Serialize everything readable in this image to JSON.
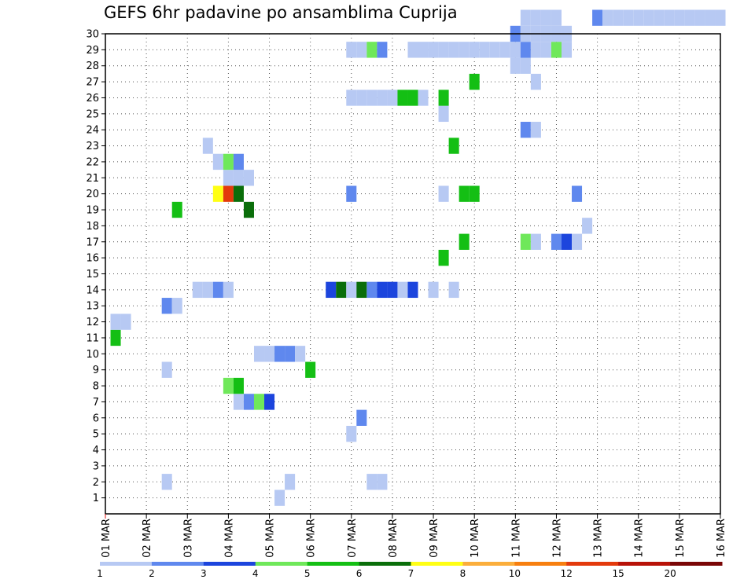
{
  "chart_data": {
    "type": "heatmap",
    "title": "GEFS 6hr padavine po ansamblima Cuprija",
    "xlabel": "",
    "ylabel": "",
    "x_step": "6 hours",
    "x_ticks": [
      "01 MAR",
      "02 MAR",
      "03 MAR",
      "04 MAR",
      "05 MAR",
      "06 MAR",
      "07 MAR",
      "08 MAR",
      "09 MAR",
      "10 MAR",
      "11 MAR",
      "12 MAR",
      "13 MAR",
      "14 MAR",
      "15 MAR",
      "16 MAR"
    ],
    "y_ticks": [
      "1",
      "2",
      "3",
      "4",
      "5",
      "6",
      "7",
      "8",
      "9",
      "10",
      "11",
      "12",
      "13",
      "14",
      "15",
      "16",
      "17",
      "18",
      "19",
      "20",
      "21",
      "22",
      "23",
      "24",
      "25",
      "26",
      "27",
      "28",
      "29",
      "30"
    ],
    "x_range": [
      0,
      60
    ],
    "y_range": [
      0,
      30
    ],
    "grid": true,
    "colorbar": {
      "colors": [
        "#b7c9f3",
        "#5f88ee",
        "#1c45dd",
        "#6fe85a",
        "#14bf14",
        "#0a6e0a",
        "#ffff14",
        "#fbae3c",
        "#f77f0f",
        "#e33a0c",
        "#b81208",
        "#7a0606"
      ],
      "labels": [
        "1",
        "2",
        "3",
        "4",
        "5",
        "6",
        "7",
        "8",
        "10",
        "12",
        "15",
        "20"
      ]
    },
    "cells": [
      [
        17,
        1,
        0
      ],
      [
        6,
        2,
        0
      ],
      [
        18,
        2,
        0
      ],
      [
        26,
        2,
        0
      ],
      [
        27,
        2,
        0
      ],
      [
        24,
        5,
        0
      ],
      [
        25,
        6,
        1
      ],
      [
        13,
        7,
        0
      ],
      [
        14,
        7,
        1
      ],
      [
        15,
        7,
        3
      ],
      [
        16,
        7,
        2
      ],
      [
        12,
        8,
        3
      ],
      [
        13,
        8,
        4
      ],
      [
        6,
        9,
        0
      ],
      [
        20,
        9,
        4
      ],
      [
        15,
        10,
        0
      ],
      [
        16,
        10,
        0
      ],
      [
        17,
        10,
        1
      ],
      [
        18,
        10,
        1
      ],
      [
        19,
        10,
        0
      ],
      [
        1,
        11,
        4
      ],
      [
        1,
        12,
        0
      ],
      [
        2,
        12,
        0
      ],
      [
        6,
        13,
        1
      ],
      [
        7,
        13,
        0
      ],
      [
        9,
        14,
        0
      ],
      [
        10,
        14,
        0
      ],
      [
        11,
        14,
        1
      ],
      [
        12,
        14,
        0
      ],
      [
        22,
        14,
        2
      ],
      [
        23,
        14,
        5
      ],
      [
        24,
        14,
        0
      ],
      [
        25,
        14,
        5
      ],
      [
        26,
        14,
        1
      ],
      [
        27,
        14,
        2
      ],
      [
        28,
        14,
        2
      ],
      [
        29,
        14,
        0
      ],
      [
        30,
        14,
        2
      ],
      [
        32,
        14,
        0
      ],
      [
        34,
        14,
        0
      ],
      [
        33,
        16,
        4
      ],
      [
        35,
        17,
        4
      ],
      [
        41,
        17,
        3
      ],
      [
        42,
        17,
        0
      ],
      [
        44,
        17,
        1
      ],
      [
        45,
        17,
        2
      ],
      [
        46,
        17,
        0
      ],
      [
        47,
        18,
        0
      ],
      [
        7,
        19,
        4
      ],
      [
        14,
        19,
        5
      ],
      [
        11,
        20,
        6
      ],
      [
        12,
        20,
        9
      ],
      [
        13,
        20,
        5
      ],
      [
        24,
        20,
        1
      ],
      [
        33,
        20,
        0
      ],
      [
        35,
        20,
        4
      ],
      [
        36,
        20,
        4
      ],
      [
        46,
        20,
        1
      ],
      [
        12,
        21,
        0
      ],
      [
        13,
        21,
        0
      ],
      [
        14,
        21,
        0
      ],
      [
        11,
        22,
        0
      ],
      [
        12,
        22,
        3
      ],
      [
        13,
        22,
        1
      ],
      [
        10,
        23,
        0
      ],
      [
        34,
        23,
        4
      ],
      [
        41,
        24,
        1
      ],
      [
        42,
        24,
        0
      ],
      [
        33,
        25,
        0
      ],
      [
        24,
        26,
        0
      ],
      [
        25,
        26,
        0
      ],
      [
        26,
        26,
        0
      ],
      [
        27,
        26,
        0
      ],
      [
        28,
        26,
        0
      ],
      [
        29,
        26,
        4
      ],
      [
        30,
        26,
        4
      ],
      [
        31,
        26,
        0
      ],
      [
        33,
        26,
        4
      ],
      [
        36,
        27,
        4
      ],
      [
        42,
        27,
        0
      ],
      [
        40,
        28,
        0
      ],
      [
        41,
        28,
        0
      ],
      [
        24,
        29,
        0
      ],
      [
        25,
        29,
        0
      ],
      [
        26,
        29,
        3
      ],
      [
        27,
        29,
        1
      ],
      [
        30,
        29,
        0
      ],
      [
        31,
        29,
        0
      ],
      [
        32,
        29,
        0
      ],
      [
        33,
        29,
        0
      ],
      [
        34,
        29,
        0
      ],
      [
        35,
        29,
        0
      ],
      [
        36,
        29,
        0
      ],
      [
        37,
        29,
        0
      ],
      [
        38,
        29,
        0
      ],
      [
        39,
        29,
        0
      ],
      [
        40,
        29,
        0
      ],
      [
        41,
        29,
        1
      ],
      [
        42,
        29,
        0
      ],
      [
        43,
        29,
        0
      ],
      [
        44,
        29,
        3
      ],
      [
        45,
        29,
        0
      ],
      [
        40,
        30,
        1
      ],
      [
        41,
        30,
        0
      ],
      [
        42,
        30,
        0
      ],
      [
        43,
        30,
        0
      ],
      [
        44,
        30,
        0
      ],
      [
        45,
        30,
        0
      ],
      [
        41,
        31,
        0
      ],
      [
        42,
        31,
        0
      ],
      [
        43,
        31,
        0
      ],
      [
        44,
        31,
        0
      ],
      [
        48,
        31,
        1
      ],
      [
        49,
        31,
        0
      ],
      [
        50,
        31,
        0
      ],
      [
        51,
        31,
        0
      ],
      [
        52,
        31,
        0
      ],
      [
        53,
        31,
        0
      ],
      [
        54,
        31,
        0
      ],
      [
        55,
        31,
        0
      ],
      [
        56,
        31,
        0
      ],
      [
        57,
        31,
        0
      ],
      [
        58,
        31,
        0
      ],
      [
        59,
        31,
        0
      ],
      [
        60,
        31,
        0
      ]
    ]
  }
}
